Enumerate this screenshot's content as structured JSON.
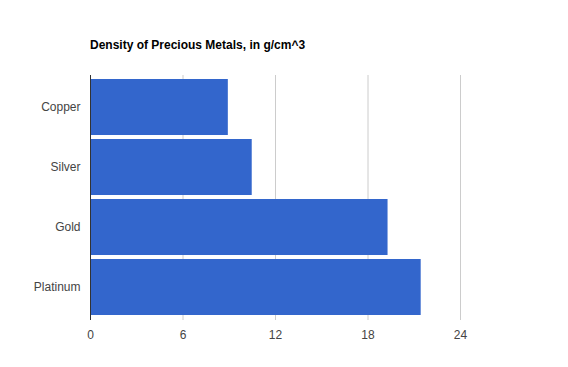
{
  "chart_data": {
    "type": "bar",
    "orientation": "horizontal",
    "title": "Density of Precious Metals, in g/cm^3",
    "categories": [
      "Copper",
      "Silver",
      "Gold",
      "Platinum"
    ],
    "values": [
      8.94,
      10.49,
      19.3,
      21.45
    ],
    "color": "#3366cc",
    "xlim": [
      0,
      24
    ],
    "xticks": [
      0,
      6,
      12,
      18,
      24
    ],
    "grid": true
  }
}
